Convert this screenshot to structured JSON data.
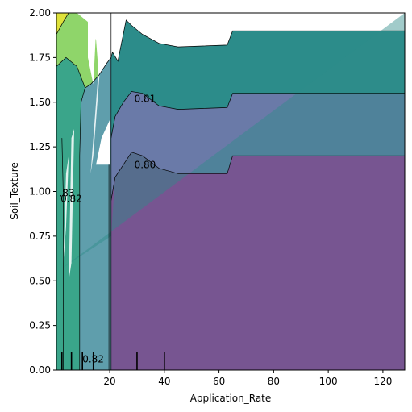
{
  "chart_data": {
    "type": "contour",
    "xlabel": "Application_Rate",
    "ylabel": "Soil_Texture",
    "xlim": [
      0.5,
      128
    ],
    "ylim": [
      0,
      2
    ],
    "x_ticks": [
      20,
      40,
      60,
      80,
      100,
      120
    ],
    "y_ticks": [
      0.0,
      0.25,
      0.5,
      0.75,
      1.0,
      1.25,
      1.5,
      1.75,
      2.0
    ],
    "x_tick_labels": [
      "20",
      "40",
      "60",
      "80",
      "100",
      "120"
    ],
    "y_tick_labels": [
      "0.00",
      "0.25",
      "0.50",
      "0.75",
      "1.00",
      "1.25",
      "1.50",
      "1.75",
      "2.00"
    ],
    "contour_levels": [
      0.8,
      0.81,
      0.82,
      0.83
    ],
    "contour_labels": [
      {
        "text": "0.81",
        "x": 29,
        "y": 1.52
      },
      {
        "text": "0.80",
        "x": 29,
        "y": 1.15
      },
      {
        "text": "0.82",
        "x": 2,
        "y": 0.96
      },
      {
        "text": ".83",
        "x": 1.5,
        "y": 0.99
      },
      {
        "text": "0.82",
        "x": 10,
        "y": 0.06
      }
    ],
    "rug_x": [
      2.5,
      6,
      10,
      14,
      30,
      40
    ],
    "colormap": "viridis",
    "colors": {
      "purple": "#775591",
      "blue": "#6a7aa8",
      "teal_blue": "#5f9eac",
      "teal": "#2c8c8a",
      "green_teal": "#3aa58a",
      "green": "#5bbd75",
      "light_green": "#8fd56a",
      "yellow_green": "#c3dc4e",
      "yellow": "#dfe23a"
    }
  }
}
